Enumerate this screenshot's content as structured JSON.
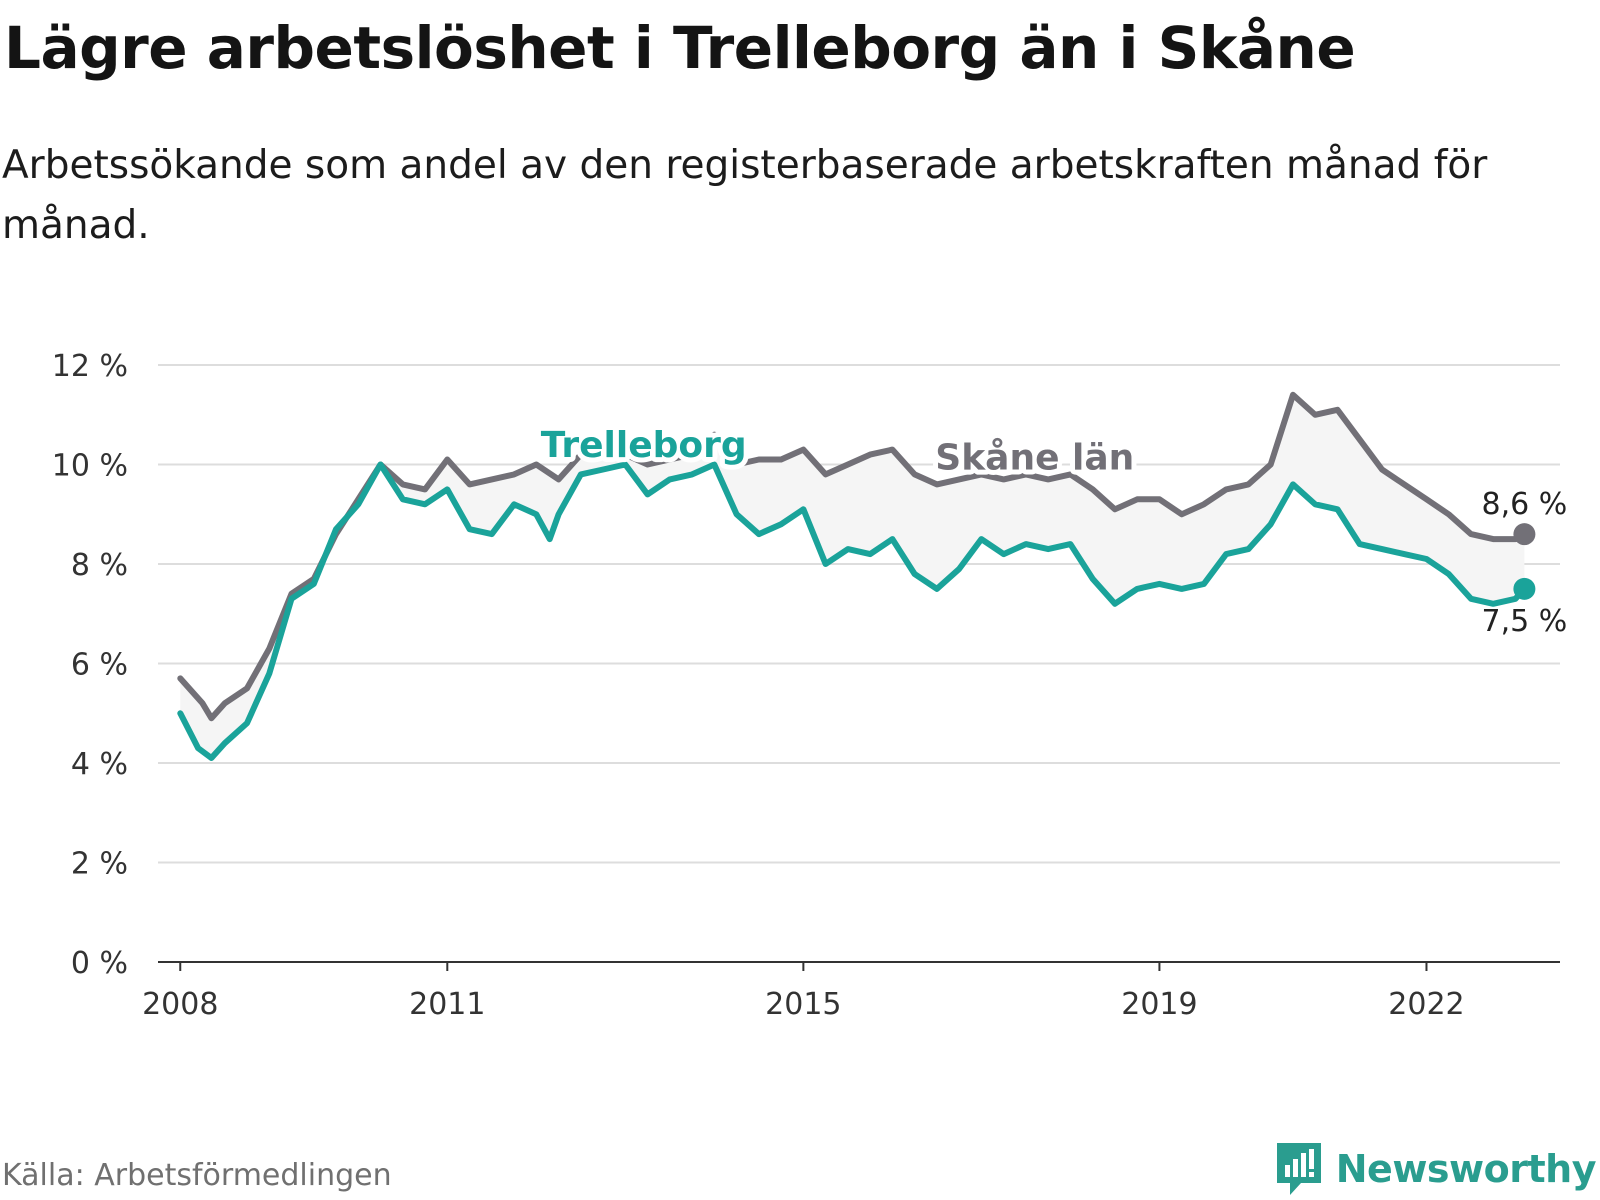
{
  "title": "Lägre arbetslöshet i Trelleborg än i Skåne",
  "subtitle": "Arbetssökande som andel av den registerbaserade arbetskraften månad för månad.",
  "source": "Källa: Arbetsförmedlingen",
  "brand": "Newsworthy",
  "brand_icon": "newsworthy-logo-icon",
  "colors": {
    "trelleborg": "#1aa39a",
    "skane": "#727077",
    "band": "#f5f5f5",
    "grid": "#dddddd",
    "axis": "#333333",
    "brand": "#2a9d8f"
  },
  "chart_data": {
    "type": "line",
    "title": "Lägre arbetslöshet i Trelleborg än i Skåne",
    "subtitle": "Arbetssökande som andel av den registerbaserade arbetskraften månad för månad.",
    "x_unit": "year (decimal, monthly)",
    "x_range": [
      2007.75,
      2023.5
    ],
    "ylim": [
      0,
      12
    ],
    "y_ticks": [
      0,
      2,
      4,
      6,
      8,
      10,
      12
    ],
    "y_tick_labels": [
      "0 %",
      "2 %",
      "4 %",
      "6 %",
      "8 %",
      "10 %",
      "12 %"
    ],
    "x_ticks": [
      2008,
      2011,
      2015,
      2019,
      2022
    ],
    "x_tick_labels": [
      "2008",
      "2011",
      "2015",
      "2019",
      "2022"
    ],
    "grid": true,
    "band_between_series": true,
    "series": [
      {
        "name": "Skåne län",
        "label": "Skåne län",
        "end_label": "8,6 %",
        "end_value": 8.6,
        "points": [
          [
            2008.0,
            5.7
          ],
          [
            2008.25,
            5.2
          ],
          [
            2008.35,
            4.9
          ],
          [
            2008.5,
            5.2
          ],
          [
            2008.75,
            5.5
          ],
          [
            2009.0,
            6.3
          ],
          [
            2009.25,
            7.4
          ],
          [
            2009.5,
            7.7
          ],
          [
            2009.75,
            8.6
          ],
          [
            2010.0,
            9.3
          ],
          [
            2010.25,
            10.0
          ],
          [
            2010.5,
            9.6
          ],
          [
            2010.75,
            9.5
          ],
          [
            2011.0,
            10.1
          ],
          [
            2011.25,
            9.6
          ],
          [
            2011.5,
            9.7
          ],
          [
            2011.75,
            9.8
          ],
          [
            2012.0,
            10.0
          ],
          [
            2012.25,
            9.7
          ],
          [
            2012.5,
            10.2
          ],
          [
            2012.75,
            10.4
          ],
          [
            2013.0,
            10.2
          ],
          [
            2013.25,
            10.0
          ],
          [
            2013.5,
            10.1
          ],
          [
            2013.75,
            10.2
          ],
          [
            2014.0,
            10.6
          ],
          [
            2014.25,
            10.0
          ],
          [
            2014.5,
            10.1
          ],
          [
            2014.75,
            10.1
          ],
          [
            2015.0,
            10.3
          ],
          [
            2015.25,
            9.8
          ],
          [
            2015.5,
            10.0
          ],
          [
            2015.75,
            10.2
          ],
          [
            2016.0,
            10.3
          ],
          [
            2016.25,
            9.8
          ],
          [
            2016.5,
            9.6
          ],
          [
            2016.75,
            9.7
          ],
          [
            2017.0,
            9.8
          ],
          [
            2017.25,
            9.7
          ],
          [
            2017.5,
            9.8
          ],
          [
            2017.75,
            9.7
          ],
          [
            2018.0,
            9.8
          ],
          [
            2018.25,
            9.5
          ],
          [
            2018.5,
            9.1
          ],
          [
            2018.75,
            9.3
          ],
          [
            2019.0,
            9.3
          ],
          [
            2019.25,
            9.0
          ],
          [
            2019.5,
            9.2
          ],
          [
            2019.75,
            9.5
          ],
          [
            2020.0,
            9.6
          ],
          [
            2020.25,
            10.0
          ],
          [
            2020.5,
            11.4
          ],
          [
            2020.75,
            11.0
          ],
          [
            2021.0,
            11.1
          ],
          [
            2021.25,
            10.5
          ],
          [
            2021.5,
            9.9
          ],
          [
            2021.75,
            9.6
          ],
          [
            2022.0,
            9.3
          ],
          [
            2022.25,
            9.0
          ],
          [
            2022.5,
            8.6
          ],
          [
            2022.75,
            8.5
          ],
          [
            2023.0,
            8.5
          ],
          [
            2023.1,
            8.6
          ]
        ]
      },
      {
        "name": "Trelleborg",
        "label": "Trelleborg",
        "end_label": "7,5 %",
        "end_value": 7.5,
        "points": [
          [
            2008.0,
            5.0
          ],
          [
            2008.2,
            4.3
          ],
          [
            2008.35,
            4.1
          ],
          [
            2008.5,
            4.4
          ],
          [
            2008.75,
            4.8
          ],
          [
            2009.0,
            5.8
          ],
          [
            2009.25,
            7.3
          ],
          [
            2009.5,
            7.6
          ],
          [
            2009.75,
            8.7
          ],
          [
            2010.0,
            9.2
          ],
          [
            2010.25,
            10.0
          ],
          [
            2010.5,
            9.3
          ],
          [
            2010.75,
            9.2
          ],
          [
            2011.0,
            9.5
          ],
          [
            2011.25,
            8.7
          ],
          [
            2011.5,
            8.6
          ],
          [
            2011.75,
            9.2
          ],
          [
            2012.0,
            9.0
          ],
          [
            2012.15,
            8.5
          ],
          [
            2012.25,
            9.0
          ],
          [
            2012.5,
            9.8
          ],
          [
            2012.75,
            9.9
          ],
          [
            2013.0,
            10.0
          ],
          [
            2013.25,
            9.4
          ],
          [
            2013.5,
            9.7
          ],
          [
            2013.75,
            9.8
          ],
          [
            2014.0,
            10.0
          ],
          [
            2014.25,
            9.0
          ],
          [
            2014.5,
            8.6
          ],
          [
            2014.75,
            8.8
          ],
          [
            2015.0,
            9.1
          ],
          [
            2015.25,
            8.0
          ],
          [
            2015.5,
            8.3
          ],
          [
            2015.75,
            8.2
          ],
          [
            2016.0,
            8.5
          ],
          [
            2016.25,
            7.8
          ],
          [
            2016.5,
            7.5
          ],
          [
            2016.75,
            7.9
          ],
          [
            2017.0,
            8.5
          ],
          [
            2017.25,
            8.2
          ],
          [
            2017.5,
            8.4
          ],
          [
            2017.75,
            8.3
          ],
          [
            2018.0,
            8.4
          ],
          [
            2018.25,
            7.7
          ],
          [
            2018.5,
            7.2
          ],
          [
            2018.75,
            7.5
          ],
          [
            2019.0,
            7.6
          ],
          [
            2019.25,
            7.5
          ],
          [
            2019.5,
            7.6
          ],
          [
            2019.75,
            8.2
          ],
          [
            2020.0,
            8.3
          ],
          [
            2020.25,
            8.8
          ],
          [
            2020.5,
            9.6
          ],
          [
            2020.75,
            9.2
          ],
          [
            2021.0,
            9.1
          ],
          [
            2021.25,
            8.4
          ],
          [
            2021.5,
            8.3
          ],
          [
            2021.75,
            8.2
          ],
          [
            2022.0,
            8.1
          ],
          [
            2022.25,
            7.8
          ],
          [
            2022.5,
            7.3
          ],
          [
            2022.75,
            7.2
          ],
          [
            2023.0,
            7.3
          ],
          [
            2023.1,
            7.5
          ]
        ]
      }
    ]
  }
}
